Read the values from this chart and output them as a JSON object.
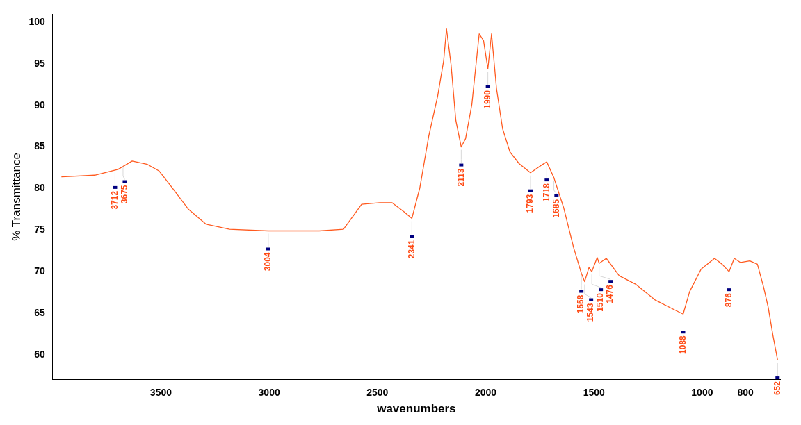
{
  "chart_data": {
    "type": "line",
    "xlabel": "wavenumbers",
    "ylabel": "% Transmittance",
    "xlim": [
      4000,
      640
    ],
    "xticks": [
      3500,
      3000,
      2500,
      2000,
      1500,
      1000,
      800
    ],
    "ylim": [
      57,
      101
    ],
    "yticks": [
      60,
      65,
      70,
      75,
      80,
      85,
      90,
      95,
      100
    ],
    "grid": false,
    "legend": false,
    "marker": "none",
    "line_style": "solid",
    "x": [
      3958,
      3806,
      3698,
      3633,
      3562,
      3508,
      3454,
      3373,
      3291,
      3183,
      3004,
      2769,
      2657,
      2573,
      2489,
      2433,
      2377,
      2341,
      2304,
      2263,
      2222,
      2194,
      2181,
      2160,
      2138,
      2113,
      2093,
      2064,
      2030,
      2010,
      1990,
      1973,
      1950,
      1922,
      1888,
      1846,
      1793,
      1743,
      1718,
      1685,
      1640,
      1594,
      1558,
      1543,
      1523,
      1510,
      1485,
      1476,
      1443,
      1383,
      1308,
      1218,
      1127,
      1088,
      1058,
      1005,
      943,
      908,
      876,
      852,
      823,
      780,
      745,
      716,
      695,
      673,
      652
    ],
    "series": [
      {
        "color": "#ff5a1f",
        "values": [
          81.4,
          81.6,
          82.3,
          83.3,
          82.9,
          82.1,
          80.3,
          77.5,
          75.7,
          75.1,
          74.9,
          74.9,
          75.1,
          78.1,
          78.3,
          78.3,
          77.2,
          76.4,
          80.1,
          86.3,
          91.1,
          95.4,
          99.2,
          94.9,
          88.2,
          85.0,
          86.0,
          90.1,
          98.6,
          97.8,
          94.4,
          98.6,
          92.0,
          87.2,
          84.4,
          83.0,
          81.9,
          82.8,
          83.2,
          81.3,
          77.7,
          72.9,
          69.8,
          68.8,
          70.5,
          70.0,
          71.7,
          71.0,
          71.6,
          69.5,
          68.5,
          66.6,
          65.4,
          64.9,
          67.6,
          70.3,
          71.6,
          70.9,
          70.0,
          71.6,
          71.1,
          71.3,
          70.9,
          68.1,
          65.7,
          62.3,
          59.4
        ]
      }
    ],
    "annotations": [
      {
        "text": "3712",
        "x": 3712,
        "y": 82.3
      },
      {
        "text": "3675",
        "x": 3675,
        "y": 83.0
      },
      {
        "text": "3004",
        "x": 3004,
        "y": 74.9
      },
      {
        "text": "2341",
        "x": 2341,
        "y": 76.4
      },
      {
        "text": "2113",
        "x": 2113,
        "y": 85.0
      },
      {
        "text": "1990",
        "x": 1990,
        "y": 94.4
      },
      {
        "text": "1793",
        "x": 1793,
        "y": 81.9
      },
      {
        "text": "1718",
        "x": 1718,
        "y": 83.2
      },
      {
        "text": "1685",
        "x": 1685,
        "y": 81.3
      },
      {
        "text": "1558",
        "x": 1558,
        "y": 69.8
      },
      {
        "text": "1543",
        "x": 1543,
        "y": 68.8
      },
      {
        "text": "1510",
        "x": 1510,
        "y": 70.0
      },
      {
        "text": "1476",
        "x": 1476,
        "y": 71.0
      },
      {
        "text": "1088",
        "x": 1088,
        "y": 64.9
      },
      {
        "text": "876",
        "x": 876,
        "y": 70.0
      },
      {
        "text": "652",
        "x": 652,
        "y": 59.4
      }
    ]
  }
}
